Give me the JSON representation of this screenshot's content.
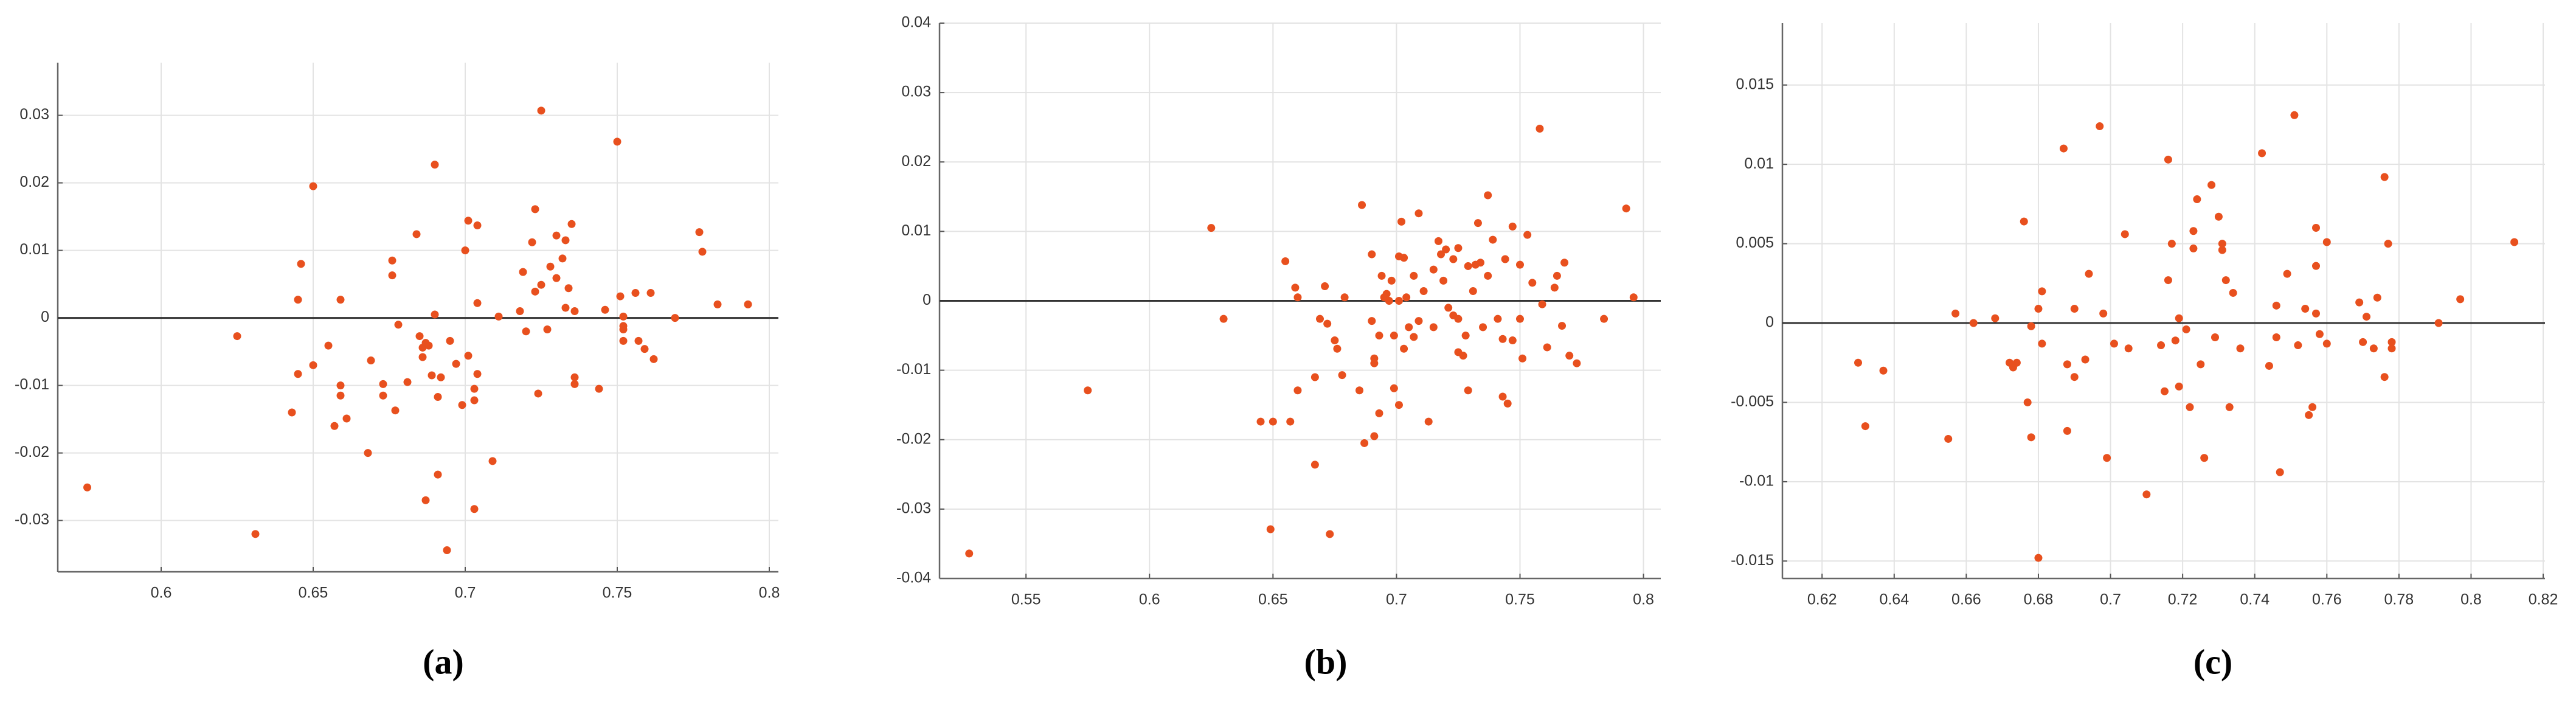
{
  "chart_data": [
    {
      "type": "scatter",
      "caption": "(a)",
      "color": "#e8501e",
      "grid": true,
      "reference_line": 0,
      "xlim": [
        0.566,
        0.803
      ],
      "ylim": [
        -0.0376,
        0.0378
      ],
      "xticks": [
        0.6,
        0.65,
        0.7,
        0.75,
        0.8
      ],
      "yticks": [
        -0.03,
        -0.02,
        -0.01,
        0,
        0.01,
        0.02,
        0.03
      ],
      "x": [
        0.5757,
        0.631,
        0.625,
        0.65,
        0.646,
        0.645,
        0.645,
        0.643,
        0.65,
        0.655,
        0.657,
        0.659,
        0.659,
        0.659,
        0.661,
        0.668,
        0.669,
        0.673,
        0.673,
        0.676,
        0.676,
        0.677,
        0.678,
        0.681,
        0.684,
        0.685,
        0.686,
        0.686,
        0.687,
        0.687,
        0.688,
        0.689,
        0.69,
        0.69,
        0.691,
        0.691,
        0.692,
        0.694,
        0.695,
        0.697,
        0.699,
        0.7,
        0.701,
        0.701,
        0.703,
        0.703,
        0.703,
        0.704,
        0.704,
        0.704,
        0.709,
        0.711,
        0.718,
        0.719,
        0.72,
        0.722,
        0.723,
        0.723,
        0.724,
        0.725,
        0.725,
        0.727,
        0.728,
        0.73,
        0.73,
        0.732,
        0.733,
        0.733,
        0.734,
        0.735,
        0.736,
        0.736,
        0.736,
        0.744,
        0.746,
        0.75,
        0.751,
        0.752,
        0.752,
        0.752,
        0.752,
        0.756,
        0.757,
        0.759,
        0.761,
        0.762,
        0.769,
        0.777,
        0.778,
        0.783,
        0.793
      ],
      "values": [
        -0.0251,
        -0.032,
        -0.0027,
        0.0195,
        0.008,
        0.0027,
        -0.0083,
        -0.014,
        -0.007,
        -0.0041,
        -0.016,
        -0.01,
        -0.0115,
        0.0027,
        -0.0149,
        -0.02,
        -0.0063,
        -0.0098,
        -0.0115,
        0.0085,
        0.0063,
        -0.0137,
        -0.001,
        -0.0095,
        0.0124,
        -0.0027,
        -0.0044,
        -0.0058,
        -0.0037,
        -0.027,
        -0.0041,
        -0.0085,
        0.0227,
        0.0005,
        -0.0232,
        -0.0117,
        -0.0088,
        -0.0344,
        -0.0034,
        -0.0068,
        -0.0129,
        0.01,
        0.0144,
        -0.0056,
        -0.0283,
        -0.0105,
        -0.0122,
        -0.0083,
        0.0137,
        0.0022,
        -0.0212,
        0.0002,
        0.001,
        0.0068,
        -0.002,
        0.0112,
        0.0039,
        0.0161,
        -0.0112,
        0.0307,
        0.0049,
        -0.0017,
        0.0076,
        0.0059,
        0.0122,
        0.0088,
        0.0115,
        0.0015,
        0.0044,
        0.0139,
        -0.0098,
        -0.0088,
        0.001,
        -0.0105,
        0.0012,
        0.0261,
        0.0032,
        -0.0012,
        -0.0034,
        0.0002,
        -0.0017,
        0.0037,
        -0.0034,
        -0.0046,
        0.0037,
        -0.0061,
        0,
        0.0127,
        0.0098,
        0.002,
        0.002
      ]
    },
    {
      "type": "scatter",
      "caption": "(b)",
      "color": "#e8501e",
      "grid": true,
      "reference_line": 0,
      "xlim": [
        0.515,
        0.807
      ],
      "ylim": [
        -0.04,
        0.04
      ],
      "xticks": [
        0.55,
        0.6,
        0.65,
        0.7,
        0.75,
        0.8
      ],
      "yticks": [
        -0.04,
        -0.03,
        -0.02,
        -0.01,
        0,
        0.01,
        0.02,
        0.03,
        0.04
      ],
      "x": [
        0.527,
        0.575,
        0.625,
        0.63,
        0.645,
        0.649,
        0.65,
        0.655,
        0.657,
        0.659,
        0.66,
        0.66,
        0.667,
        0.667,
        0.669,
        0.671,
        0.672,
        0.673,
        0.675,
        0.676,
        0.678,
        0.679,
        0.685,
        0.686,
        0.687,
        0.69,
        0.69,
        0.691,
        0.691,
        0.691,
        0.693,
        0.693,
        0.694,
        0.695,
        0.696,
        0.697,
        0.698,
        0.699,
        0.699,
        0.701,
        0.701,
        0.701,
        0.702,
        0.703,
        0.703,
        0.704,
        0.705,
        0.707,
        0.707,
        0.709,
        0.709,
        0.711,
        0.713,
        0.715,
        0.715,
        0.717,
        0.718,
        0.719,
        0.72,
        0.721,
        0.723,
        0.723,
        0.725,
        0.725,
        0.725,
        0.727,
        0.728,
        0.729,
        0.729,
        0.731,
        0.732,
        0.733,
        0.734,
        0.735,
        0.737,
        0.737,
        0.739,
        0.741,
        0.743,
        0.743,
        0.744,
        0.745,
        0.747,
        0.747,
        0.75,
        0.75,
        0.751,
        0.753,
        0.755,
        0.758,
        0.759,
        0.761,
        0.764,
        0.765,
        0.767,
        0.768,
        0.77,
        0.773,
        0.784,
        0.793,
        0.796
      ],
      "values": [
        -0.0364,
        -0.0129,
        0.0105,
        -0.0026,
        -0.0174,
        -0.0329,
        -0.0174,
        0.0057,
        -0.0174,
        0.0019,
        0.0005,
        -0.0129,
        -0.011,
        -0.0236,
        -0.0026,
        0.0021,
        -0.0033,
        -0.0336,
        -0.0057,
        -0.0069,
        -0.0107,
        0.0005,
        -0.0129,
        0.0138,
        -0.0205,
        0.0067,
        -0.0029,
        -0.0083,
        -0.009,
        -0.0195,
        -0.0162,
        -0.005,
        0.0036,
        0.0005,
        0.001,
        0,
        0.0029,
        -0.0126,
        -0.005,
        0,
        0.0064,
        -0.015,
        0.0114,
        0.0062,
        -0.0069,
        0.0005,
        -0.0038,
        0.0036,
        -0.0052,
        0.0126,
        -0.0029,
        0.0014,
        -0.0174,
        -0.0038,
        0.0045,
        0.0086,
        0.0067,
        0.0029,
        0.0074,
        -0.001,
        0.006,
        -0.0021,
        0.0076,
        -0.0026,
        -0.0074,
        -0.0079,
        -0.005,
        0.005,
        -0.0129,
        0.0014,
        0.0052,
        0.0112,
        0.0055,
        -0.0038,
        0.0152,
        0.0036,
        0.0088,
        -0.0026,
        -0.0055,
        -0.0138,
        0.006,
        -0.0148,
        0.0107,
        -0.0057,
        0.0052,
        -0.0026,
        -0.0083,
        0.0095,
        0.0026,
        0.0248,
        -0.0005,
        -0.0067,
        0.0019,
        0.0036,
        -0.0036,
        0.0055,
        -0.0079,
        -0.009,
        -0.0026,
        0.0133,
        0.0005
      ]
    },
    {
      "type": "scatter",
      "caption": "(c)",
      "color": "#e8501e",
      "grid": true,
      "reference_line": 0,
      "xlim": [
        0.609,
        0.8205
      ],
      "ylim": [
        -0.0161,
        0.0189
      ],
      "xticks": [
        0.62,
        0.64,
        0.66,
        0.68,
        0.7,
        0.72,
        0.74,
        0.76,
        0.78,
        0.8,
        0.82
      ],
      "yticks": [
        -0.015,
        -0.01,
        -0.005,
        0,
        0.005,
        0.01,
        0.015
      ],
      "x": [
        0.63,
        0.632,
        0.637,
        0.655,
        0.657,
        0.662,
        0.668,
        0.672,
        0.673,
        0.674,
        0.676,
        0.677,
        0.678,
        0.678,
        0.68,
        0.68,
        0.681,
        0.681,
        0.687,
        0.688,
        0.688,
        0.69,
        0.69,
        0.693,
        0.694,
        0.697,
        0.698,
        0.699,
        0.701,
        0.704,
        0.705,
        0.71,
        0.714,
        0.715,
        0.716,
        0.716,
        0.717,
        0.718,
        0.719,
        0.719,
        0.721,
        0.722,
        0.723,
        0.723,
        0.724,
        0.725,
        0.726,
        0.728,
        0.729,
        0.73,
        0.731,
        0.731,
        0.732,
        0.733,
        0.734,
        0.736,
        0.742,
        0.744,
        0.746,
        0.746,
        0.747,
        0.749,
        0.751,
        0.752,
        0.754,
        0.755,
        0.756,
        0.757,
        0.757,
        0.757,
        0.758,
        0.76,
        0.76,
        0.769,
        0.77,
        0.771,
        0.773,
        0.774,
        0.776,
        0.776,
        0.777,
        0.778,
        0.778,
        0.791,
        0.797,
        0.812
      ],
      "values": [
        -0.0025,
        -0.0065,
        -0.003,
        -0.0073,
        0.0006,
        0,
        0.0003,
        -0.0025,
        -0.0028,
        -0.0025,
        0.0064,
        -0.005,
        -0.0002,
        -0.0072,
        -0.0148,
        0.0009,
        -0.0013,
        0.002,
        0.011,
        -0.0068,
        -0.0026,
        0.0009,
        -0.0034,
        -0.0023,
        0.0031,
        0.0124,
        0.0006,
        -0.0085,
        -0.0013,
        0.0056,
        -0.0016,
        -0.0108,
        -0.0014,
        -0.0043,
        0.0027,
        0.0103,
        0.005,
        -0.0011,
        0.0003,
        -0.004,
        -0.0004,
        -0.0053,
        0.0058,
        0.0047,
        0.0078,
        -0.0026,
        -0.0085,
        0.0087,
        -0.0009,
        0.0067,
        0.005,
        0.0046,
        0.0027,
        -0.0053,
        0.0019,
        -0.0016,
        0.0107,
        -0.0027,
        0.0011,
        -0.0009,
        -0.0094,
        0.0031,
        0.0131,
        -0.0014,
        0.0009,
        -0.0058,
        -0.0053,
        0.006,
        0.0006,
        0.0036,
        -0.0007,
        0.0051,
        -0.0013,
        0.0013,
        -0.0012,
        0.0004,
        -0.0016,
        0.0016,
        -0.0034,
        0.0092,
        0.005,
        -0.0016,
        -0.0012,
        0,
        0.0015,
        0.0051
      ]
    }
  ]
}
